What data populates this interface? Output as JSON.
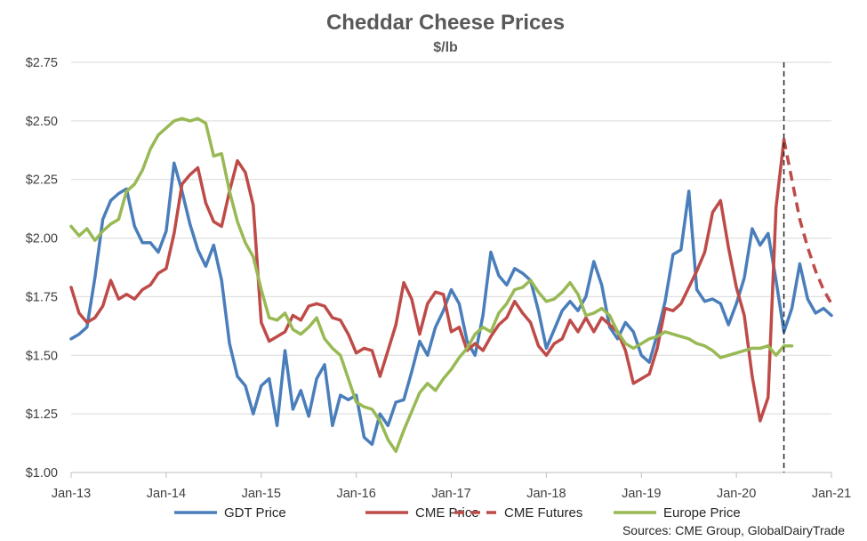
{
  "chart_data": {
    "type": "line",
    "title": "Cheddar Cheese Prices",
    "subtitle": "$/lb",
    "source_note": "Sources:  CME Group, GlobalDairyTrade",
    "xlim": [
      "2013-01",
      "2021-01"
    ],
    "ylim": [
      1.0,
      2.75
    ],
    "x_ticks": [
      "Jan-13",
      "Jan-14",
      "Jan-15",
      "Jan-16",
      "Jan-17",
      "Jan-18",
      "Jan-19",
      "Jan-20",
      "Jan-21"
    ],
    "y_ticks": [
      "$1.00",
      "$1.25",
      "$1.50",
      "$1.75",
      "$2.00",
      "$2.25",
      "$2.50",
      "$2.75"
    ],
    "grid": "horizontal",
    "legend_position": "bottom",
    "reference_line": {
      "x": "2020-07",
      "style": "dashed"
    },
    "series": [
      {
        "name": "GDT Price",
        "color": "#4A7EBB",
        "style": "solid",
        "points": [
          [
            "2013-01",
            1.57
          ],
          [
            "2013-02",
            1.59
          ],
          [
            "2013-03",
            1.62
          ],
          [
            "2013-04",
            1.83
          ],
          [
            "2013-05",
            2.08
          ],
          [
            "2013-06",
            2.16
          ],
          [
            "2013-07",
            2.19
          ],
          [
            "2013-08",
            2.21
          ],
          [
            "2013-09",
            2.05
          ],
          [
            "2013-10",
            1.98
          ],
          [
            "2013-11",
            1.98
          ],
          [
            "2013-12",
            1.94
          ],
          [
            "2014-01",
            2.03
          ],
          [
            "2014-02",
            2.32
          ],
          [
            "2014-03",
            2.2
          ],
          [
            "2014-04",
            2.06
          ],
          [
            "2014-05",
            1.95
          ],
          [
            "2014-06",
            1.88
          ],
          [
            "2014-07",
            1.97
          ],
          [
            "2014-08",
            1.82
          ],
          [
            "2014-09",
            1.55
          ],
          [
            "2014-10",
            1.41
          ],
          [
            "2014-11",
            1.37
          ],
          [
            "2014-12",
            1.25
          ],
          [
            "2015-01",
            1.37
          ],
          [
            "2015-02",
            1.4
          ],
          [
            "2015-03",
            1.2
          ],
          [
            "2015-04",
            1.52
          ],
          [
            "2015-05",
            1.27
          ],
          [
            "2015-06",
            1.35
          ],
          [
            "2015-07",
            1.24
          ],
          [
            "2015-08",
            1.4
          ],
          [
            "2015-09",
            1.46
          ],
          [
            "2015-10",
            1.2
          ],
          [
            "2015-11",
            1.33
          ],
          [
            "2015-12",
            1.31
          ],
          [
            "2016-01",
            1.33
          ],
          [
            "2016-02",
            1.15
          ],
          [
            "2016-03",
            1.12
          ],
          [
            "2016-04",
            1.25
          ],
          [
            "2016-05",
            1.2
          ],
          [
            "2016-06",
            1.3
          ],
          [
            "2016-07",
            1.31
          ],
          [
            "2016-08",
            1.43
          ],
          [
            "2016-09",
            1.56
          ],
          [
            "2016-10",
            1.5
          ],
          [
            "2016-11",
            1.62
          ],
          [
            "2016-12",
            1.69
          ],
          [
            "2017-01",
            1.78
          ],
          [
            "2017-02",
            1.72
          ],
          [
            "2017-03",
            1.56
          ],
          [
            "2017-04",
            1.5
          ],
          [
            "2017-05",
            1.67
          ],
          [
            "2017-06",
            1.94
          ],
          [
            "2017-07",
            1.84
          ],
          [
            "2017-08",
            1.8
          ],
          [
            "2017-09",
            1.87
          ],
          [
            "2017-10",
            1.85
          ],
          [
            "2017-11",
            1.82
          ],
          [
            "2017-12",
            1.69
          ],
          [
            "2018-01",
            1.53
          ],
          [
            "2018-02",
            1.61
          ],
          [
            "2018-03",
            1.69
          ],
          [
            "2018-04",
            1.73
          ],
          [
            "2018-05",
            1.69
          ],
          [
            "2018-06",
            1.75
          ],
          [
            "2018-07",
            1.9
          ],
          [
            "2018-08",
            1.8
          ],
          [
            "2018-09",
            1.62
          ],
          [
            "2018-10",
            1.57
          ],
          [
            "2018-11",
            1.64
          ],
          [
            "2018-12",
            1.6
          ],
          [
            "2019-01",
            1.5
          ],
          [
            "2019-02",
            1.47
          ],
          [
            "2019-03",
            1.59
          ],
          [
            "2019-04",
            1.73
          ],
          [
            "2019-05",
            1.93
          ],
          [
            "2019-06",
            1.95
          ],
          [
            "2019-07",
            2.2
          ],
          [
            "2019-08",
            1.78
          ],
          [
            "2019-09",
            1.73
          ],
          [
            "2019-10",
            1.74
          ],
          [
            "2019-11",
            1.72
          ],
          [
            "2019-12",
            1.63
          ],
          [
            "2020-01",
            1.72
          ],
          [
            "2020-02",
            1.83
          ],
          [
            "2020-03",
            2.04
          ],
          [
            "2020-04",
            1.97
          ],
          [
            "2020-05",
            2.02
          ],
          [
            "2020-06",
            1.82
          ],
          [
            "2020-07",
            1.6
          ],
          [
            "2020-08",
            1.7
          ],
          [
            "2020-09",
            1.89
          ],
          [
            "2020-10",
            1.74
          ],
          [
            "2020-11",
            1.68
          ],
          [
            "2020-12",
            1.7
          ],
          [
            "2021-01",
            1.67
          ]
        ]
      },
      {
        "name": "CME Price",
        "color": "#BE4B48",
        "style": "solid",
        "points": [
          [
            "2013-01",
            1.79
          ],
          [
            "2013-02",
            1.68
          ],
          [
            "2013-03",
            1.64
          ],
          [
            "2013-04",
            1.66
          ],
          [
            "2013-05",
            1.71
          ],
          [
            "2013-06",
            1.82
          ],
          [
            "2013-07",
            1.74
          ],
          [
            "2013-08",
            1.76
          ],
          [
            "2013-09",
            1.74
          ],
          [
            "2013-10",
            1.78
          ],
          [
            "2013-11",
            1.8
          ],
          [
            "2013-12",
            1.85
          ],
          [
            "2014-01",
            1.87
          ],
          [
            "2014-02",
            2.02
          ],
          [
            "2014-03",
            2.23
          ],
          [
            "2014-04",
            2.27
          ],
          [
            "2014-05",
            2.3
          ],
          [
            "2014-06",
            2.15
          ],
          [
            "2014-07",
            2.07
          ],
          [
            "2014-08",
            2.05
          ],
          [
            "2014-09",
            2.2
          ],
          [
            "2014-10",
            2.33
          ],
          [
            "2014-11",
            2.28
          ],
          [
            "2014-12",
            2.14
          ],
          [
            "2015-01",
            1.64
          ],
          [
            "2015-02",
            1.56
          ],
          [
            "2015-03",
            1.58
          ],
          [
            "2015-04",
            1.6
          ],
          [
            "2015-05",
            1.67
          ],
          [
            "2015-06",
            1.65
          ],
          [
            "2015-07",
            1.71
          ],
          [
            "2015-08",
            1.72
          ],
          [
            "2015-09",
            1.71
          ],
          [
            "2015-10",
            1.66
          ],
          [
            "2015-11",
            1.65
          ],
          [
            "2015-12",
            1.59
          ],
          [
            "2016-01",
            1.51
          ],
          [
            "2016-02",
            1.53
          ],
          [
            "2016-03",
            1.52
          ],
          [
            "2016-04",
            1.41
          ],
          [
            "2016-05",
            1.52
          ],
          [
            "2016-06",
            1.63
          ],
          [
            "2016-07",
            1.81
          ],
          [
            "2016-08",
            1.74
          ],
          [
            "2016-09",
            1.59
          ],
          [
            "2016-10",
            1.72
          ],
          [
            "2016-11",
            1.77
          ],
          [
            "2016-12",
            1.76
          ],
          [
            "2017-01",
            1.6
          ],
          [
            "2017-02",
            1.62
          ],
          [
            "2017-03",
            1.52
          ],
          [
            "2017-04",
            1.55
          ],
          [
            "2017-05",
            1.52
          ],
          [
            "2017-06",
            1.58
          ],
          [
            "2017-07",
            1.63
          ],
          [
            "2017-08",
            1.66
          ],
          [
            "2017-09",
            1.73
          ],
          [
            "2017-10",
            1.68
          ],
          [
            "2017-11",
            1.64
          ],
          [
            "2017-12",
            1.54
          ],
          [
            "2018-01",
            1.5
          ],
          [
            "2018-02",
            1.55
          ],
          [
            "2018-03",
            1.57
          ],
          [
            "2018-04",
            1.65
          ],
          [
            "2018-05",
            1.6
          ],
          [
            "2018-06",
            1.66
          ],
          [
            "2018-07",
            1.6
          ],
          [
            "2018-08",
            1.66
          ],
          [
            "2018-09",
            1.63
          ],
          [
            "2018-10",
            1.6
          ],
          [
            "2018-11",
            1.52
          ],
          [
            "2018-12",
            1.38
          ],
          [
            "2019-01",
            1.4
          ],
          [
            "2019-02",
            1.42
          ],
          [
            "2019-03",
            1.53
          ],
          [
            "2019-04",
            1.7
          ],
          [
            "2019-05",
            1.69
          ],
          [
            "2019-06",
            1.72
          ],
          [
            "2019-07",
            1.79
          ],
          [
            "2019-08",
            1.86
          ],
          [
            "2019-09",
            1.94
          ],
          [
            "2019-10",
            2.11
          ],
          [
            "2019-11",
            2.16
          ],
          [
            "2019-12",
            1.96
          ],
          [
            "2020-01",
            1.79
          ],
          [
            "2020-02",
            1.67
          ],
          [
            "2020-03",
            1.41
          ],
          [
            "2020-04",
            1.22
          ],
          [
            "2020-05",
            1.32
          ],
          [
            "2020-06",
            2.13
          ],
          [
            "2020-07",
            2.42
          ]
        ]
      },
      {
        "name": "CME Futures",
        "color": "#BE4B48",
        "style": "dashed",
        "points": [
          [
            "2020-07",
            2.42
          ],
          [
            "2020-08",
            2.25
          ],
          [
            "2020-09",
            2.08
          ],
          [
            "2020-10",
            1.96
          ],
          [
            "2020-11",
            1.86
          ],
          [
            "2020-12",
            1.78
          ],
          [
            "2021-01",
            1.72
          ]
        ]
      },
      {
        "name": "Europe Price",
        "color": "#98B954",
        "style": "solid",
        "points": [
          [
            "2013-01",
            2.05
          ],
          [
            "2013-02",
            2.01
          ],
          [
            "2013-03",
            2.04
          ],
          [
            "2013-04",
            1.99
          ],
          [
            "2013-05",
            2.03
          ],
          [
            "2013-06",
            2.06
          ],
          [
            "2013-07",
            2.08
          ],
          [
            "2013-08",
            2.2
          ],
          [
            "2013-09",
            2.23
          ],
          [
            "2013-10",
            2.29
          ],
          [
            "2013-11",
            2.38
          ],
          [
            "2013-12",
            2.44
          ],
          [
            "2014-01",
            2.47
          ],
          [
            "2014-02",
            2.5
          ],
          [
            "2014-03",
            2.51
          ],
          [
            "2014-04",
            2.5
          ],
          [
            "2014-05",
            2.51
          ],
          [
            "2014-06",
            2.49
          ],
          [
            "2014-07",
            2.35
          ],
          [
            "2014-08",
            2.36
          ],
          [
            "2014-09",
            2.2
          ],
          [
            "2014-10",
            2.07
          ],
          [
            "2014-11",
            1.98
          ],
          [
            "2014-12",
            1.92
          ],
          [
            "2015-01",
            1.78
          ],
          [
            "2015-02",
            1.66
          ],
          [
            "2015-03",
            1.65
          ],
          [
            "2015-04",
            1.68
          ],
          [
            "2015-05",
            1.61
          ],
          [
            "2015-06",
            1.59
          ],
          [
            "2015-07",
            1.62
          ],
          [
            "2015-08",
            1.66
          ],
          [
            "2015-09",
            1.57
          ],
          [
            "2015-10",
            1.53
          ],
          [
            "2015-11",
            1.5
          ],
          [
            "2015-12",
            1.4
          ],
          [
            "2016-01",
            1.3
          ],
          [
            "2016-02",
            1.28
          ],
          [
            "2016-03",
            1.27
          ],
          [
            "2016-04",
            1.22
          ],
          [
            "2016-05",
            1.14
          ],
          [
            "2016-06",
            1.09
          ],
          [
            "2016-07",
            1.18
          ],
          [
            "2016-08",
            1.26
          ],
          [
            "2016-09",
            1.34
          ],
          [
            "2016-10",
            1.38
          ],
          [
            "2016-11",
            1.35
          ],
          [
            "2016-12",
            1.4
          ],
          [
            "2017-01",
            1.44
          ],
          [
            "2017-02",
            1.49
          ],
          [
            "2017-03",
            1.53
          ],
          [
            "2017-04",
            1.59
          ],
          [
            "2017-05",
            1.62
          ],
          [
            "2017-06",
            1.6
          ],
          [
            "2017-07",
            1.68
          ],
          [
            "2017-08",
            1.72
          ],
          [
            "2017-09",
            1.78
          ],
          [
            "2017-10",
            1.79
          ],
          [
            "2017-11",
            1.82
          ],
          [
            "2017-12",
            1.77
          ],
          [
            "2018-01",
            1.73
          ],
          [
            "2018-02",
            1.74
          ],
          [
            "2018-03",
            1.77
          ],
          [
            "2018-04",
            1.81
          ],
          [
            "2018-05",
            1.76
          ],
          [
            "2018-06",
            1.67
          ],
          [
            "2018-07",
            1.68
          ],
          [
            "2018-08",
            1.7
          ],
          [
            "2018-09",
            1.67
          ],
          [
            "2018-10",
            1.6
          ],
          [
            "2018-11",
            1.55
          ],
          [
            "2018-12",
            1.53
          ],
          [
            "2019-01",
            1.55
          ],
          [
            "2019-02",
            1.57
          ],
          [
            "2019-03",
            1.58
          ],
          [
            "2019-04",
            1.6
          ],
          [
            "2019-05",
            1.59
          ],
          [
            "2019-06",
            1.58
          ],
          [
            "2019-07",
            1.57
          ],
          [
            "2019-08",
            1.55
          ],
          [
            "2019-09",
            1.54
          ],
          [
            "2019-10",
            1.52
          ],
          [
            "2019-11",
            1.49
          ],
          [
            "2019-12",
            1.5
          ],
          [
            "2020-01",
            1.51
          ],
          [
            "2020-02",
            1.52
          ],
          [
            "2020-03",
            1.53
          ],
          [
            "2020-04",
            1.53
          ],
          [
            "2020-05",
            1.54
          ],
          [
            "2020-06",
            1.5
          ],
          [
            "2020-07",
            1.54
          ],
          [
            "2020-08",
            1.54
          ]
        ]
      }
    ]
  }
}
